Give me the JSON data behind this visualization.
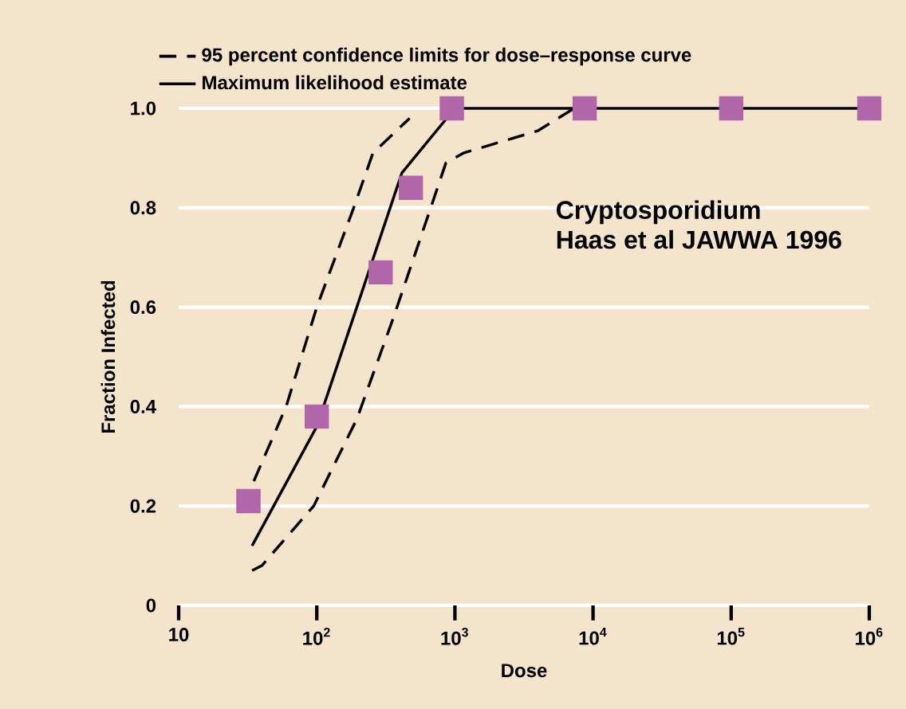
{
  "chart_data": {
    "type": "line",
    "xlabel": "Dose",
    "ylabel": "Fraction Infected",
    "log": "x",
    "grid": "y",
    "legend": "top left",
    "xlim": [
      10,
      1000000
    ],
    "ylim": [
      0,
      1
    ],
    "xticks": [
      10,
      {
        "value": 100,
        "label": "10$^{2}$"
      },
      {
        "value": 1000,
        "label": "10$^{3}$"
      },
      {
        "value": 10000,
        "label": "10$^{4}$"
      },
      {
        "value": 100000,
        "label": "10$^{5}$"
      },
      {
        "value": 1000000,
        "label": "10$^{6}$"
      }
    ],
    "yticks": [
      0,
      0.2,
      0.4,
      0.6,
      0.8,
      {
        "value": 1,
        "label": "1.0"
      }
    ],
    "annotations": [
      "Cryptosporidium",
      "Haas et al JAWWA 1996"
    ],
    "series": [
      {
        "name": "95 percent confidence limits for dose–response curve",
        "color": "#000000",
        "line_style": "dashed",
        "marker": "none",
        "x": [
          35,
          60,
          100,
          185,
          255,
          470
        ],
        "values": [
          0.25,
          0.4,
          0.6,
          0.8,
          0.91,
          0.98
        ]
      },
      {
        "name": "Maximum likelihood estimate",
        "color": "#000000",
        "line_style": "solid",
        "marker": "none",
        "x": [
          34,
          100,
          413,
          1000,
          1000000
        ],
        "values": [
          0.12,
          0.36,
          0.87,
          1.0,
          1.0
        ]
      },
      {
        "color": "#000000",
        "line_style": "dashed",
        "marker": "none",
        "x": [
          34,
          40,
          95,
          195,
          360,
          650,
          860,
          1150,
          4000,
          7300
        ],
        "values": [
          0.07,
          0.08,
          0.2,
          0.375,
          0.58,
          0.79,
          0.89,
          0.91,
          0.955,
          1.0
        ]
      },
      {
        "type": "scatter",
        "color": "#b066a8",
        "marker": "square",
        "x": [
          32,
          100,
          290,
          480,
          950,
          8700,
          100000,
          1000000
        ],
        "values": [
          0.21,
          0.38,
          0.67,
          0.84,
          1.0,
          1.0,
          1.0,
          1.0
        ]
      }
    ]
  }
}
